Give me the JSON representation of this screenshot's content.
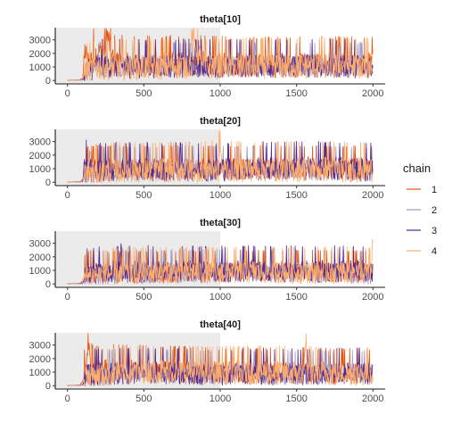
{
  "chart_data": {
    "type": "line",
    "legend": {
      "title": "chain",
      "placement": "right",
      "entries": [
        {
          "label": "1",
          "color": "#e6550d"
        },
        {
          "label": "2",
          "color": "#9e9ac8"
        },
        {
          "label": "3",
          "color": "#54278f"
        },
        {
          "label": "4",
          "color": "#fdae6b"
        }
      ]
    },
    "warmup": {
      "start": 0,
      "end": 1000,
      "shade_color": "#ebebeb"
    },
    "iterations": 2000,
    "xlim": [
      -80,
      2080
    ],
    "x_ticks": [
      0,
      500,
      1000,
      1500,
      2000
    ],
    "panels": [
      {
        "title": "theta[10]",
        "ylim": [
          -250,
          3900
        ],
        "y_ticks": [
          0,
          1000,
          2000,
          3000
        ],
        "series": [
          {
            "name": "1",
            "knots": [
              [
                0,
                0
              ],
              [
                80,
                20
              ],
              [
                100,
                200
              ],
              [
                115,
                2300
              ],
              [
                130,
                1300
              ],
              [
                180,
                2000
              ],
              [
                250,
                2300
              ],
              [
                255,
                3700
              ],
              [
                300,
                1400
              ],
              [
                400,
                1200
              ],
              [
                500,
                1300
              ],
              [
                600,
                1200
              ],
              [
                700,
                1300
              ],
              [
                800,
                1200
              ],
              [
                900,
                1300
              ],
              [
                1000,
                1200
              ],
              [
                1200,
                1200
              ],
              [
                1400,
                1200
              ],
              [
                1600,
                1200
              ],
              [
                1800,
                1200
              ],
              [
                2000,
                1200
              ]
            ],
            "spread": 1800
          },
          {
            "name": "2",
            "knots": [
              [
                0,
                0
              ],
              [
                90,
                20
              ],
              [
                120,
                600
              ],
              [
                150,
                1100
              ],
              [
                300,
                1100
              ],
              [
                600,
                1100
              ],
              [
                1000,
                1100
              ],
              [
                1500,
                1100
              ],
              [
                2000,
                1100
              ]
            ],
            "spread": 1500
          },
          {
            "name": "3",
            "knots": [
              [
                0,
                0
              ],
              [
                100,
                50
              ],
              [
                130,
                800
              ],
              [
                200,
                1100
              ],
              [
                500,
                1100
              ],
              [
                1000,
                1150
              ],
              [
                1500,
                1150
              ],
              [
                2000,
                1100
              ]
            ],
            "spread": 1700
          },
          {
            "name": "4",
            "knots": [
              [
                0,
                0
              ],
              [
                90,
                20
              ],
              [
                120,
                700
              ],
              [
                200,
                1000
              ],
              [
                500,
                1000
              ],
              [
                800,
                1100
              ],
              [
                810,
                3200
              ],
              [
                900,
                1000
              ],
              [
                1000,
                1100
              ],
              [
                1500,
                1100
              ],
              [
                2000,
                1100
              ]
            ],
            "spread": 1800
          }
        ]
      },
      {
        "title": "theta[20]",
        "ylim": [
          -250,
          3900
        ],
        "y_ticks": [
          0,
          1000,
          2000,
          3000
        ],
        "series": [
          {
            "name": "1",
            "knots": [
              [
                0,
                0
              ],
              [
                80,
                20
              ],
              [
                100,
                200
              ],
              [
                130,
                1000
              ],
              [
                300,
                1000
              ],
              [
                500,
                1000
              ],
              [
                1000,
                1000
              ],
              [
                1500,
                1000
              ],
              [
                2000,
                1000
              ]
            ],
            "spread": 1500
          },
          {
            "name": "2",
            "knots": [
              [
                0,
                0
              ],
              [
                90,
                20
              ],
              [
                120,
                500
              ],
              [
                200,
                900
              ],
              [
                500,
                900
              ],
              [
                1000,
                1000
              ],
              [
                1500,
                1000
              ],
              [
                2000,
                900
              ]
            ],
            "spread": 1500
          },
          {
            "name": "3",
            "knots": [
              [
                0,
                0
              ],
              [
                100,
                50
              ],
              [
                110,
                1800
              ],
              [
                130,
                900
              ],
              [
                300,
                1000
              ],
              [
                600,
                1000
              ],
              [
                1000,
                1000
              ],
              [
                1500,
                1100
              ],
              [
                2000,
                1000
              ]
            ],
            "spread": 1700
          },
          {
            "name": "4",
            "knots": [
              [
                0,
                0
              ],
              [
                90,
                20
              ],
              [
                120,
                600
              ],
              [
                300,
                900
              ],
              [
                990,
                1000
              ],
              [
                1000,
                3500
              ],
              [
                1010,
                1000
              ],
              [
                1500,
                1000
              ],
              [
                1700,
                1000
              ],
              [
                2000,
                900
              ]
            ],
            "spread": 1800
          }
        ]
      },
      {
        "title": "theta[30]",
        "ylim": [
          -250,
          3900
        ],
        "y_ticks": [
          0,
          1000,
          2000,
          3000
        ],
        "series": [
          {
            "name": "1",
            "knots": [
              [
                0,
                0
              ],
              [
                80,
                20
              ],
              [
                100,
                200
              ],
              [
                130,
                900
              ],
              [
                300,
                800
              ],
              [
                500,
                800
              ],
              [
                1000,
                900
              ],
              [
                1500,
                900
              ],
              [
                2000,
                900
              ]
            ],
            "spread": 1400
          },
          {
            "name": "2",
            "knots": [
              [
                0,
                0
              ],
              [
                90,
                20
              ],
              [
                120,
                500
              ],
              [
                200,
                800
              ],
              [
                500,
                800
              ],
              [
                1000,
                900
              ],
              [
                1500,
                900
              ],
              [
                2000,
                800
              ]
            ],
            "spread": 1500
          },
          {
            "name": "3",
            "knots": [
              [
                0,
                0
              ],
              [
                100,
                50
              ],
              [
                130,
                900
              ],
              [
                340,
                1000
              ],
              [
                350,
                3500
              ],
              [
                360,
                1000
              ],
              [
                1000,
                1000
              ],
              [
                1500,
                1000
              ],
              [
                2000,
                1000
              ]
            ],
            "spread": 1600
          },
          {
            "name": "4",
            "knots": [
              [
                0,
                0
              ],
              [
                90,
                20
              ],
              [
                120,
                600
              ],
              [
                400,
                900
              ],
              [
                1000,
                900
              ],
              [
                1500,
                900
              ],
              [
                1990,
                900
              ],
              [
                2000,
                3500
              ],
              [
                2010,
                900
              ]
            ],
            "spread": 1600
          }
        ]
      },
      {
        "title": "theta[40]",
        "ylim": [
          -250,
          3900
        ],
        "y_ticks": [
          0,
          1000,
          2000,
          3000
        ],
        "series": [
          {
            "name": "1",
            "knots": [
              [
                0,
                0
              ],
              [
                80,
                20
              ],
              [
                100,
                300
              ],
              [
                130,
                2000
              ],
              [
                140,
                3200
              ],
              [
                160,
                1200
              ],
              [
                400,
                1200
              ],
              [
                700,
                1100
              ],
              [
                1000,
                1000
              ],
              [
                1500,
                1000
              ],
              [
                2000,
                900
              ]
            ],
            "spread": 1600
          },
          {
            "name": "2",
            "knots": [
              [
                0,
                0
              ],
              [
                90,
                20
              ],
              [
                120,
                500
              ],
              [
                300,
                1000
              ],
              [
                600,
                1000
              ],
              [
                1000,
                900
              ],
              [
                1500,
                900
              ],
              [
                2000,
                900
              ]
            ],
            "spread": 1500
          },
          {
            "name": "3",
            "knots": [
              [
                0,
                0
              ],
              [
                100,
                50
              ],
              [
                130,
                900
              ],
              [
                500,
                1000
              ],
              [
                1000,
                900
              ],
              [
                1500,
                900
              ],
              [
                2000,
                1000
              ]
            ],
            "spread": 1600
          },
          {
            "name": "4",
            "knots": [
              [
                0,
                0
              ],
              [
                90,
                20
              ],
              [
                120,
                700
              ],
              [
                500,
                1100
              ],
              [
                1000,
                1000
              ],
              [
                1550,
                1000
              ],
              [
                1560,
                3700
              ],
              [
                1570,
                1000
              ],
              [
                2000,
                900
              ]
            ],
            "spread": 1700
          }
        ]
      }
    ]
  }
}
